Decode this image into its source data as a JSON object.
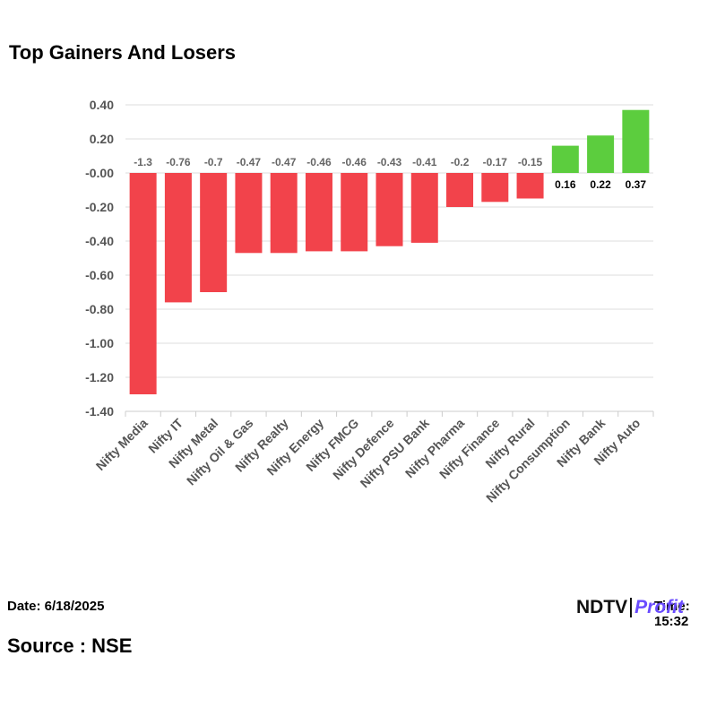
{
  "title": "Top Gainers And Losers",
  "date_label": "Date: 6/18/2025",
  "time_label": "Time: 15:32",
  "source_label": "Source : NSE",
  "logo": {
    "ndtv": "NDTV",
    "profit": "Profit"
  },
  "colors": {
    "loss": "#f2434b",
    "gain": "#5ccd3e",
    "grid": "#dddddd",
    "tick_text": "#555555",
    "value_text": "#666666"
  },
  "chart_data": {
    "type": "bar",
    "title": "Top Gainers And Losers",
    "xlabel": "",
    "ylabel": "",
    "ylim": [
      -1.4,
      0.4
    ],
    "yticks": [
      0.4,
      0.2,
      0.0,
      -0.2,
      -0.4,
      -0.6,
      -0.8,
      -1.0,
      -1.2,
      -1.4
    ],
    "ytick_labels": [
      "0.40",
      "0.20",
      "-0.00",
      "-0.20",
      "-0.40",
      "-0.60",
      "-0.80",
      "-1.00",
      "-1.20",
      "-1.40"
    ],
    "categories": [
      "Nifty Media",
      "Nifty IT",
      "Nifty Metal",
      "Nifty Oil & Gas",
      "Nifty Realty",
      "Nifty Energy",
      "Nifty FMCG",
      "Nifty Defence",
      "Nifty PSU Bank",
      "Nifty Pharma",
      "Nifty Finance",
      "Nifty Rural",
      "Nifty Consumption",
      "Nifty Bank",
      "Nifty Auto"
    ],
    "values": [
      -1.3,
      -0.76,
      -0.7,
      -0.47,
      -0.47,
      -0.46,
      -0.46,
      -0.43,
      -0.41,
      -0.2,
      -0.17,
      -0.15,
      0.16,
      0.22,
      0.37
    ],
    "value_labels": [
      "-1.3",
      "-0.76",
      "-0.7",
      "-0.47",
      "-0.47",
      "-0.46",
      "-0.46",
      "-0.43",
      "-0.41",
      "-0.2",
      "-0.17",
      "-0.15",
      "0.16",
      "0.22",
      "0.37"
    ],
    "grid": true,
    "legend": "none"
  }
}
